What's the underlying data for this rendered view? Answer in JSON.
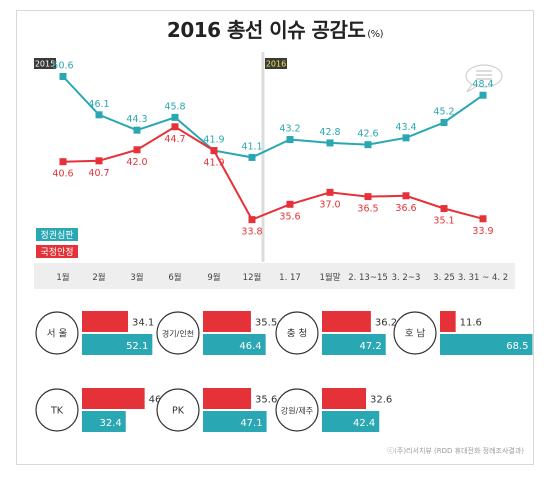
{
  "title": "2016 총선 이슈 공감도",
  "title_unit": "(%)",
  "period_labels": [
    "2015",
    "2016"
  ],
  "credit": "ⓒ(주)리서치뷰 (RDD 휴대전화 정례조사결과)",
  "colors": {
    "teal": "#29a7b3",
    "red": "#e53238",
    "band": "#eeeeee"
  },
  "chart_data": [
    {
      "type": "line",
      "categories": [
        "1월",
        "2월",
        "3월",
        "6월",
        "9월",
        "12월",
        "1. 17",
        "1월말",
        "2. 13~15",
        "3. 2~3",
        "3. 25",
        "3. 31 ~ 4. 2"
      ],
      "series": [
        {
          "name": "정권심판",
          "color": "#29a7b3",
          "values": [
            50.6,
            46.1,
            44.3,
            45.8,
            41.9,
            41.1,
            43.2,
            42.8,
            42.6,
            43.4,
            45.2,
            48.4
          ]
        },
        {
          "name": "국정안정",
          "color": "#e53238",
          "values": [
            40.6,
            40.7,
            42.0,
            44.7,
            41.9,
            33.8,
            35.6,
            37.0,
            36.5,
            36.6,
            35.1,
            33.9
          ]
        }
      ],
      "ylim": [
        30,
        55
      ],
      "grid": false,
      "legend": "bottom-left"
    },
    {
      "type": "bar",
      "orientation": "horizontal",
      "categories": [
        "서 울",
        "경기/인천",
        "충 청",
        "호 남",
        "TK",
        "PK",
        "강원/제주"
      ],
      "series": [
        {
          "name": "국정안정",
          "color": "#e53238",
          "values": [
            34.1,
            35.5,
            36.2,
            11.6,
            46.4,
            35.6,
            32.6
          ]
        },
        {
          "name": "정권심판",
          "color": "#29a7b3",
          "values": [
            52.1,
            46.4,
            47.2,
            68.5,
            32.4,
            47.1,
            42.4
          ]
        }
      ]
    }
  ]
}
